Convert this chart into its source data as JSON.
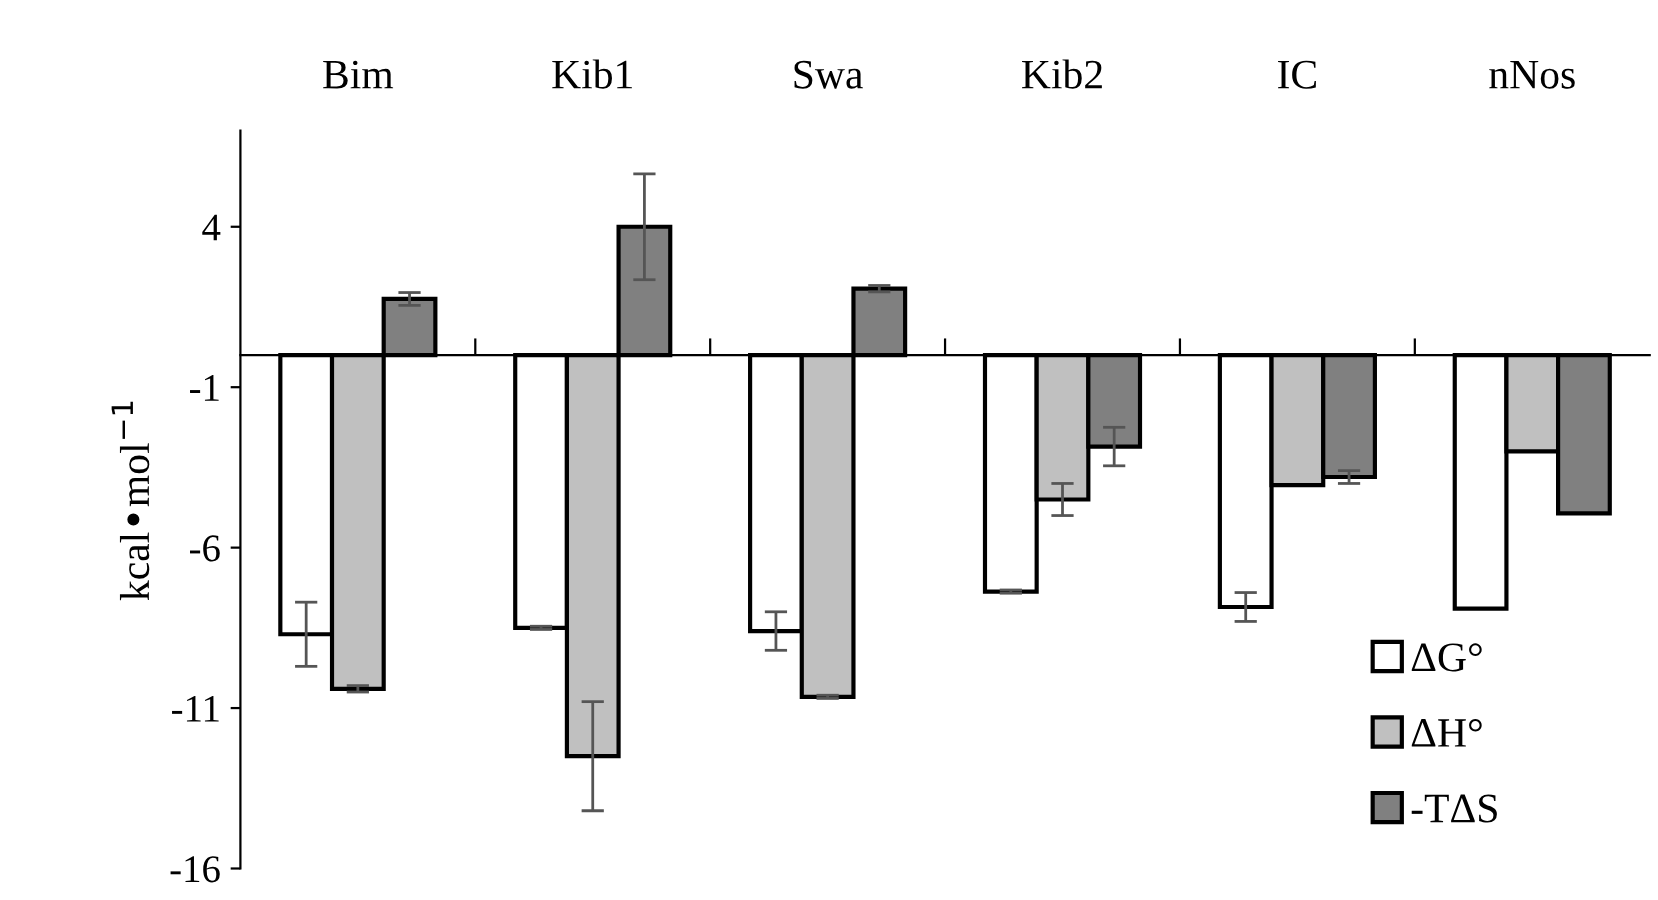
{
  "chart_data": {
    "type": "bar",
    "ylabel": "kcal•mol$^{−1}$",
    "categories": [
      "Bim",
      "Kib1",
      "Swa",
      "Kib2",
      "IC",
      "nNos"
    ],
    "series": [
      {
        "name": "ΔG°",
        "color": "#ffffff",
        "values": [
          -8.7,
          -8.5,
          -8.6,
          -7.37,
          -7.85,
          -7.9
        ],
        "errors": [
          1.0,
          0.05,
          0.6,
          0.05,
          0.45,
          null
        ]
      },
      {
        "name": "ΔH°",
        "color": "#c0c0c0",
        "values": [
          -10.4,
          -12.5,
          -10.65,
          -4.5,
          -4.05,
          -3.0
        ],
        "errors": [
          0.1,
          1.7,
          0.05,
          0.5,
          null,
          null
        ]
      },
      {
        "name": "-TΔS",
        "color": "#808080",
        "values": [
          1.75,
          4.0,
          2.07,
          -2.85,
          -3.8,
          -4.93
        ],
        "errors": [
          0.2,
          1.65,
          0.1,
          0.6,
          0.2,
          null
        ]
      }
    ],
    "ylim": [
      -16,
      7
    ],
    "yticks": [
      4,
      -1,
      -6,
      -11,
      -16
    ],
    "grid": false,
    "legend": "bottom right"
  }
}
